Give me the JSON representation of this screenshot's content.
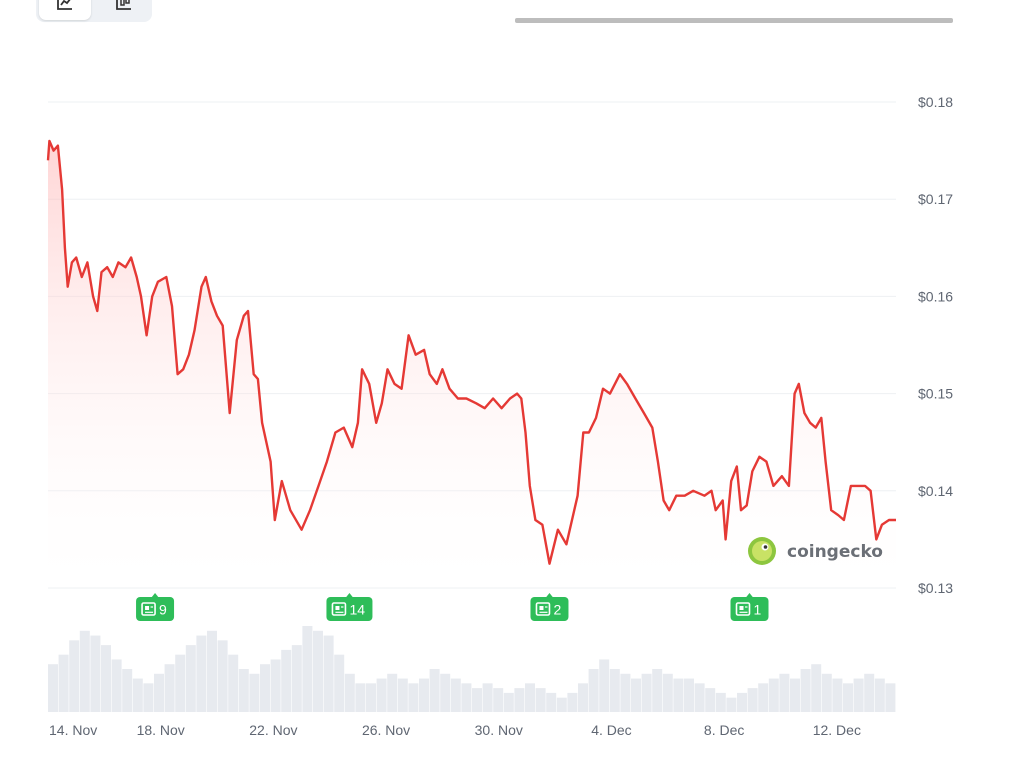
{
  "toolbar": {
    "buttons": [
      {
        "icon": "line-chart-icon",
        "active": true
      },
      {
        "icon": "candlestick-chart-icon",
        "active": false
      }
    ]
  },
  "watermark": {
    "text": "coingecko",
    "icon": "gecko-logo-icon"
  },
  "colors": {
    "line": "#e53935",
    "area": "#ffe3e3",
    "news_badge": "#2ebd59",
    "volume": "#e7eaef",
    "grid": "#eef0f3"
  },
  "chart_data": {
    "type": "area",
    "title": "",
    "xlabel": "",
    "ylabel": "",
    "ylim": [
      0.13,
      0.18
    ],
    "grid": true,
    "y_ticks": [
      {
        "value": 0.18,
        "label": "$0.18"
      },
      {
        "value": 0.17,
        "label": "$0.17"
      },
      {
        "value": 0.16,
        "label": "$0.16"
      },
      {
        "value": 0.15,
        "label": "$0.15"
      },
      {
        "value": 0.14,
        "label": "$0.14"
      },
      {
        "value": 0.13,
        "label": "$0.13"
      }
    ],
    "x_ticks": [
      {
        "day": 0,
        "label": "14. Nov"
      },
      {
        "day": 4,
        "label": "18. Nov"
      },
      {
        "day": 8,
        "label": "22. Nov"
      },
      {
        "day": 12,
        "label": "26. Nov"
      },
      {
        "day": 16,
        "label": "30. Nov"
      },
      {
        "day": 20,
        "label": "4. Dec"
      },
      {
        "day": 24,
        "label": "8. Dec"
      },
      {
        "day": 28,
        "label": "12. Dec"
      }
    ],
    "x_range": [
      0,
      30.1
    ],
    "series": [
      {
        "values": [
          [
            0.0,
            0.174
          ],
          [
            0.05,
            0.176
          ],
          [
            0.2,
            0.175
          ],
          [
            0.35,
            0.1755
          ],
          [
            0.5,
            0.171
          ],
          [
            0.6,
            0.165
          ],
          [
            0.7,
            0.161
          ],
          [
            0.85,
            0.1635
          ],
          [
            1.0,
            0.164
          ],
          [
            1.2,
            0.162
          ],
          [
            1.4,
            0.1635
          ],
          [
            1.6,
            0.16
          ],
          [
            1.75,
            0.1585
          ],
          [
            1.9,
            0.1625
          ],
          [
            2.1,
            0.163
          ],
          [
            2.3,
            0.162
          ],
          [
            2.5,
            0.1635
          ],
          [
            2.75,
            0.163
          ],
          [
            2.95,
            0.164
          ],
          [
            3.15,
            0.162
          ],
          [
            3.3,
            0.16
          ],
          [
            3.5,
            0.156
          ],
          [
            3.7,
            0.16
          ],
          [
            3.9,
            0.1615
          ],
          [
            4.2,
            0.162
          ],
          [
            4.4,
            0.159
          ],
          [
            4.6,
            0.152
          ],
          [
            4.8,
            0.1525
          ],
          [
            5.0,
            0.154
          ],
          [
            5.2,
            0.1565
          ],
          [
            5.45,
            0.161
          ],
          [
            5.6,
            0.162
          ],
          [
            5.8,
            0.1595
          ],
          [
            6.0,
            0.158
          ],
          [
            6.2,
            0.157
          ],
          [
            6.45,
            0.148
          ],
          [
            6.7,
            0.1555
          ],
          [
            6.95,
            0.158
          ],
          [
            7.1,
            0.1585
          ],
          [
            7.3,
            0.152
          ],
          [
            7.45,
            0.1515
          ],
          [
            7.6,
            0.147
          ],
          [
            7.9,
            0.143
          ],
          [
            8.05,
            0.137
          ],
          [
            8.3,
            0.141
          ],
          [
            8.6,
            0.138
          ],
          [
            9.0,
            0.136
          ],
          [
            9.3,
            0.138
          ],
          [
            9.6,
            0.1405
          ],
          [
            9.9,
            0.143
          ],
          [
            10.2,
            0.146
          ],
          [
            10.5,
            0.1465
          ],
          [
            10.8,
            0.1445
          ],
          [
            11.0,
            0.147
          ],
          [
            11.15,
            0.1525
          ],
          [
            11.4,
            0.151
          ],
          [
            11.65,
            0.147
          ],
          [
            11.85,
            0.149
          ],
          [
            12.05,
            0.1525
          ],
          [
            12.3,
            0.151
          ],
          [
            12.55,
            0.1505
          ],
          [
            12.8,
            0.156
          ],
          [
            13.05,
            0.154
          ],
          [
            13.35,
            0.1545
          ],
          [
            13.55,
            0.152
          ],
          [
            13.8,
            0.151
          ],
          [
            14.0,
            0.1525
          ],
          [
            14.25,
            0.1505
          ],
          [
            14.55,
            0.1495
          ],
          [
            14.85,
            0.1495
          ],
          [
            15.2,
            0.149
          ],
          [
            15.5,
            0.1485
          ],
          [
            15.8,
            0.1495
          ],
          [
            16.1,
            0.1485
          ],
          [
            16.4,
            0.1495
          ],
          [
            16.65,
            0.15
          ],
          [
            16.8,
            0.1495
          ],
          [
            16.95,
            0.146
          ],
          [
            17.1,
            0.1405
          ],
          [
            17.3,
            0.137
          ],
          [
            17.55,
            0.1365
          ],
          [
            17.8,
            0.1325
          ],
          [
            18.1,
            0.136
          ],
          [
            18.4,
            0.1345
          ],
          [
            18.6,
            0.137
          ],
          [
            18.8,
            0.1395
          ],
          [
            19.0,
            0.146
          ],
          [
            19.2,
            0.146
          ],
          [
            19.45,
            0.1475
          ],
          [
            19.7,
            0.1505
          ],
          [
            19.95,
            0.15
          ],
          [
            20.3,
            0.152
          ],
          [
            20.55,
            0.151
          ],
          [
            20.85,
            0.1495
          ],
          [
            21.15,
            0.148
          ],
          [
            21.45,
            0.1465
          ],
          [
            21.65,
            0.143
          ],
          [
            21.85,
            0.139
          ],
          [
            22.05,
            0.138
          ],
          [
            22.3,
            0.1395
          ],
          [
            22.6,
            0.1395
          ],
          [
            22.9,
            0.14
          ],
          [
            23.3,
            0.1395
          ],
          [
            23.55,
            0.14
          ],
          [
            23.7,
            0.138
          ],
          [
            23.95,
            0.139
          ],
          [
            24.05,
            0.135
          ],
          [
            24.25,
            0.141
          ],
          [
            24.45,
            0.1425
          ],
          [
            24.6,
            0.138
          ],
          [
            24.8,
            0.1385
          ],
          [
            25.0,
            0.142
          ],
          [
            25.25,
            0.1435
          ],
          [
            25.5,
            0.143
          ],
          [
            25.75,
            0.1405
          ],
          [
            26.05,
            0.1415
          ],
          [
            26.3,
            0.1405
          ],
          [
            26.5,
            0.15
          ],
          [
            26.65,
            0.151
          ],
          [
            26.85,
            0.148
          ],
          [
            27.05,
            0.147
          ],
          [
            27.25,
            0.1465
          ],
          [
            27.45,
            0.1475
          ],
          [
            27.6,
            0.143
          ],
          [
            27.8,
            0.138
          ],
          [
            28.05,
            0.1375
          ],
          [
            28.25,
            0.137
          ],
          [
            28.5,
            0.1405
          ],
          [
            28.75,
            0.1405
          ],
          [
            29.0,
            0.1405
          ],
          [
            29.2,
            0.14
          ],
          [
            29.4,
            0.135
          ],
          [
            29.6,
            0.1365
          ],
          [
            29.85,
            0.137
          ],
          [
            30.1,
            0.137
          ]
        ]
      }
    ],
    "volume": [
      10,
      12,
      15,
      17,
      16,
      14,
      11,
      9,
      7,
      6,
      8,
      10,
      12,
      14,
      16,
      17,
      15,
      12,
      9,
      8,
      10,
      11,
      13,
      14,
      18,
      17,
      16,
      12,
      8,
      6,
      6,
      7,
      8,
      7,
      6,
      7,
      9,
      8,
      7,
      6,
      5,
      6,
      5,
      4,
      5,
      6,
      5,
      4,
      3,
      4,
      6,
      9,
      11,
      9,
      8,
      7,
      8,
      9,
      8,
      7,
      7,
      6,
      5,
      4,
      3,
      4,
      5,
      6,
      7,
      8,
      7,
      9,
      10,
      8,
      7,
      6,
      7,
      8,
      7,
      6
    ],
    "news_markers": [
      {
        "day": 3.8,
        "count": "9"
      },
      {
        "day": 10.7,
        "count": "14"
      },
      {
        "day": 17.8,
        "count": "2"
      },
      {
        "day": 24.9,
        "count": "1"
      }
    ]
  }
}
